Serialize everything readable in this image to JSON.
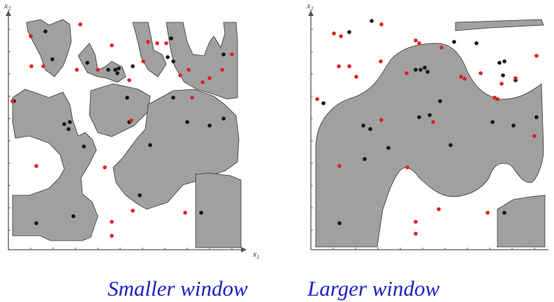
{
  "colors": {
    "region": "#a0a0a0",
    "red": "#e02020",
    "black": "#111111",
    "axis": "#555555",
    "caption": "#1f1fc8"
  },
  "axes": {
    "x_label": "x",
    "x_sub": "1",
    "y_label": "x",
    "y_sub": "2"
  },
  "panels": [
    {
      "id": "smaller",
      "caption": "Smaller window",
      "black_points": [
        [
          20,
          145
        ],
        [
          65,
          45
        ],
        [
          75,
          85
        ],
        [
          100,
          175
        ],
        [
          98,
          185
        ],
        [
          92,
          178
        ],
        [
          120,
          210
        ],
        [
          125,
          90
        ],
        [
          155,
          100
        ],
        [
          165,
          100
        ],
        [
          170,
          98
        ],
        [
          168,
          105
        ],
        [
          182,
          140
        ],
        [
          185,
          175
        ],
        [
          190,
          95
        ],
        [
          215,
          208
        ],
        [
          200,
          280
        ],
        [
          245,
          55
        ],
        [
          240,
          82
        ],
        [
          248,
          88
        ],
        [
          248,
          140
        ],
        [
          268,
          175
        ],
        [
          300,
          180
        ],
        [
          320,
          170
        ],
        [
          320,
          78
        ],
        [
          288,
          305
        ],
        [
          105,
          310
        ],
        [
          52,
          320
        ]
      ],
      "red_points": [
        [
          44,
          52
        ],
        [
          115,
          35
        ],
        [
          45,
          95
        ],
        [
          62,
          95
        ],
        [
          110,
          100
        ],
        [
          140,
          100
        ],
        [
          160,
          65
        ],
        [
          185,
          115
        ],
        [
          205,
          88
        ],
        [
          212,
          60
        ],
        [
          225,
          62
        ],
        [
          238,
          62
        ],
        [
          258,
          108
        ],
        [
          275,
          140
        ],
        [
          290,
          118
        ],
        [
          300,
          112
        ],
        [
          318,
          100
        ],
        [
          332,
          78
        ],
        [
          270,
          100
        ],
        [
          18,
          145
        ],
        [
          150,
          240
        ],
        [
          52,
          238
        ],
        [
          190,
          302
        ],
        [
          265,
          305
        ],
        [
          160,
          318
        ],
        [
          160,
          338
        ],
        [
          188,
          173
        ]
      ]
    },
    {
      "id": "larger",
      "caption": "Larger window",
      "black_points": [
        [
          500,
          46
        ],
        [
          532,
          30
        ],
        [
          602,
          100
        ],
        [
          608,
          97
        ],
        [
          612,
          103
        ],
        [
          595,
          100
        ],
        [
          630,
          145
        ],
        [
          650,
          60
        ],
        [
          682,
          62
        ],
        [
          715,
          90
        ],
        [
          722,
          88
        ],
        [
          720,
          108
        ],
        [
          738,
          115
        ],
        [
          520,
          180
        ],
        [
          530,
          185
        ],
        [
          522,
          228
        ],
        [
          556,
          212
        ],
        [
          600,
          168
        ],
        [
          615,
          165
        ],
        [
          645,
          208
        ],
        [
          705,
          175
        ],
        [
          735,
          180
        ],
        [
          768,
          168
        ],
        [
          722,
          305
        ],
        [
          486,
          320
        ],
        [
          463,
          148
        ]
      ],
      "red_points": [
        [
          478,
          48
        ],
        [
          488,
          52
        ],
        [
          546,
          35
        ],
        [
          485,
          95
        ],
        [
          500,
          95
        ],
        [
          510,
          110
        ],
        [
          545,
          88
        ],
        [
          582,
          105
        ],
        [
          595,
          58
        ],
        [
          600,
          62
        ],
        [
          632,
          68
        ],
        [
          660,
          110
        ],
        [
          665,
          113
        ],
        [
          688,
          105
        ],
        [
          718,
          120
        ],
        [
          738,
          112
        ],
        [
          768,
          80
        ],
        [
          708,
          140
        ],
        [
          712,
          142
        ],
        [
          454,
          142
        ],
        [
          546,
          172
        ],
        [
          620,
          175
        ],
        [
          765,
          195
        ],
        [
          486,
          238
        ],
        [
          583,
          240
        ],
        [
          628,
          300
        ],
        [
          698,
          305
        ],
        [
          595,
          318
        ],
        [
          595,
          335
        ]
      ]
    }
  ]
}
